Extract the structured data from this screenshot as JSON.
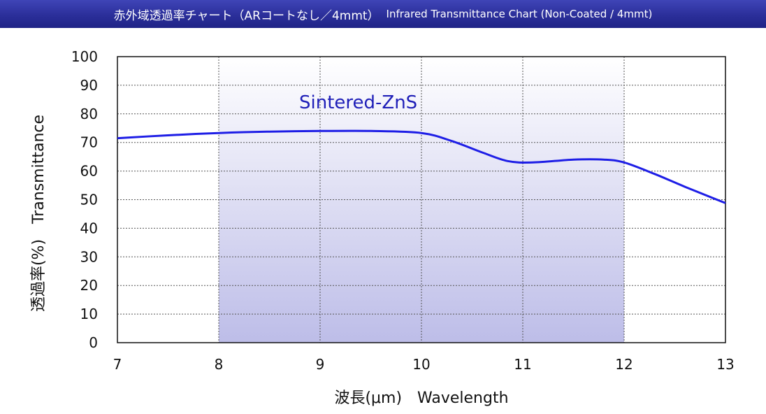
{
  "title_jp": "赤外域透過率チャート（ARコートなし／4mmt）",
  "title_en": "Infrared Transmittance Chart (Non-Coated / 4mmt)",
  "chart_data": {
    "type": "line",
    "xlabel": "波長(μm)　Wavelength",
    "ylabel": "透過率(%)　Transmittance",
    "xlim": [
      7,
      13
    ],
    "ylim": [
      0,
      100
    ],
    "xticks": [
      7,
      8,
      9,
      10,
      11,
      12,
      13
    ],
    "yticks": [
      0,
      10,
      20,
      30,
      40,
      50,
      60,
      70,
      80,
      90,
      100
    ],
    "grid": true,
    "highlight_band": [
      8,
      12
    ],
    "series": [
      {
        "name": "Sintered-ZnS",
        "color": "#1e1ee6",
        "x": [
          7.0,
          7.5,
          8.0,
          8.5,
          9.0,
          9.5,
          10.0,
          10.3,
          10.6,
          10.85,
          11.1,
          11.5,
          11.8,
          12.0,
          12.3,
          12.6,
          13.0
        ],
        "y": [
          71.5,
          72.5,
          73.3,
          73.8,
          74.0,
          74.0,
          73.3,
          70.5,
          66.5,
          63.5,
          63.0,
          64.0,
          64.0,
          63.0,
          59.0,
          54.5,
          48.8
        ]
      }
    ]
  }
}
